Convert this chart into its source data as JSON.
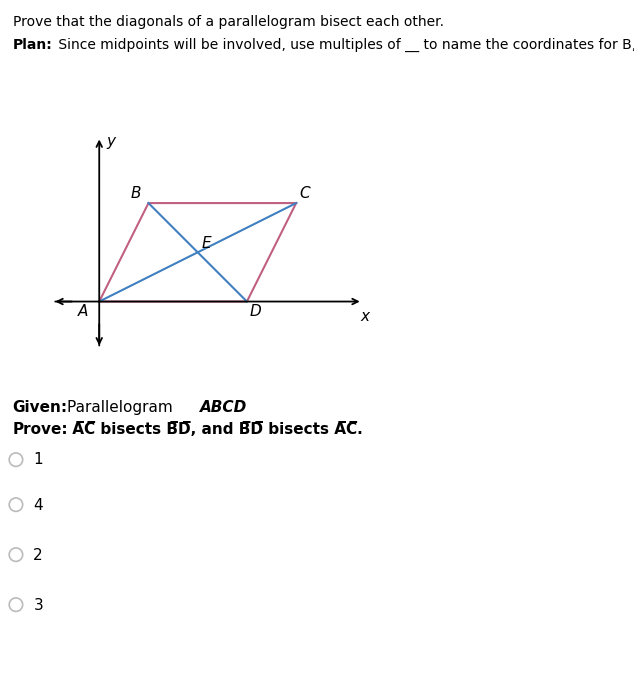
{
  "title_line1": "Prove that the diagonals of a parallelogram bisect each other.",
  "plan_bold": "Plan:",
  "plan_rest": " Since midpoints will be involved, use multiples of __ to name the coordinates for ​B, C, and D.",
  "given_bold": "Given:",
  "given_rest": " Parallelogram ",
  "given_italic": "ABCD",
  "prove_bold": "Prove:",
  "prove_rest_1": " A̅C̅ bisects B̅D̅, and B̅D̅ bisects A̅C̅.",
  "A": [
    0,
    0
  ],
  "B": [
    1,
    2
  ],
  "C": [
    4,
    2
  ],
  "D": [
    3,
    0
  ],
  "parallelogram_color": "#c06080",
  "diagonal_color": "#4080c0",
  "bg_color": "#ffffff",
  "radio_numbers": [
    "1",
    "4",
    "2",
    "3"
  ],
  "xlim": [
    -1.0,
    5.5
  ],
  "ylim": [
    -1.0,
    3.5
  ],
  "radio_circle_color": "#bbbbbb"
}
